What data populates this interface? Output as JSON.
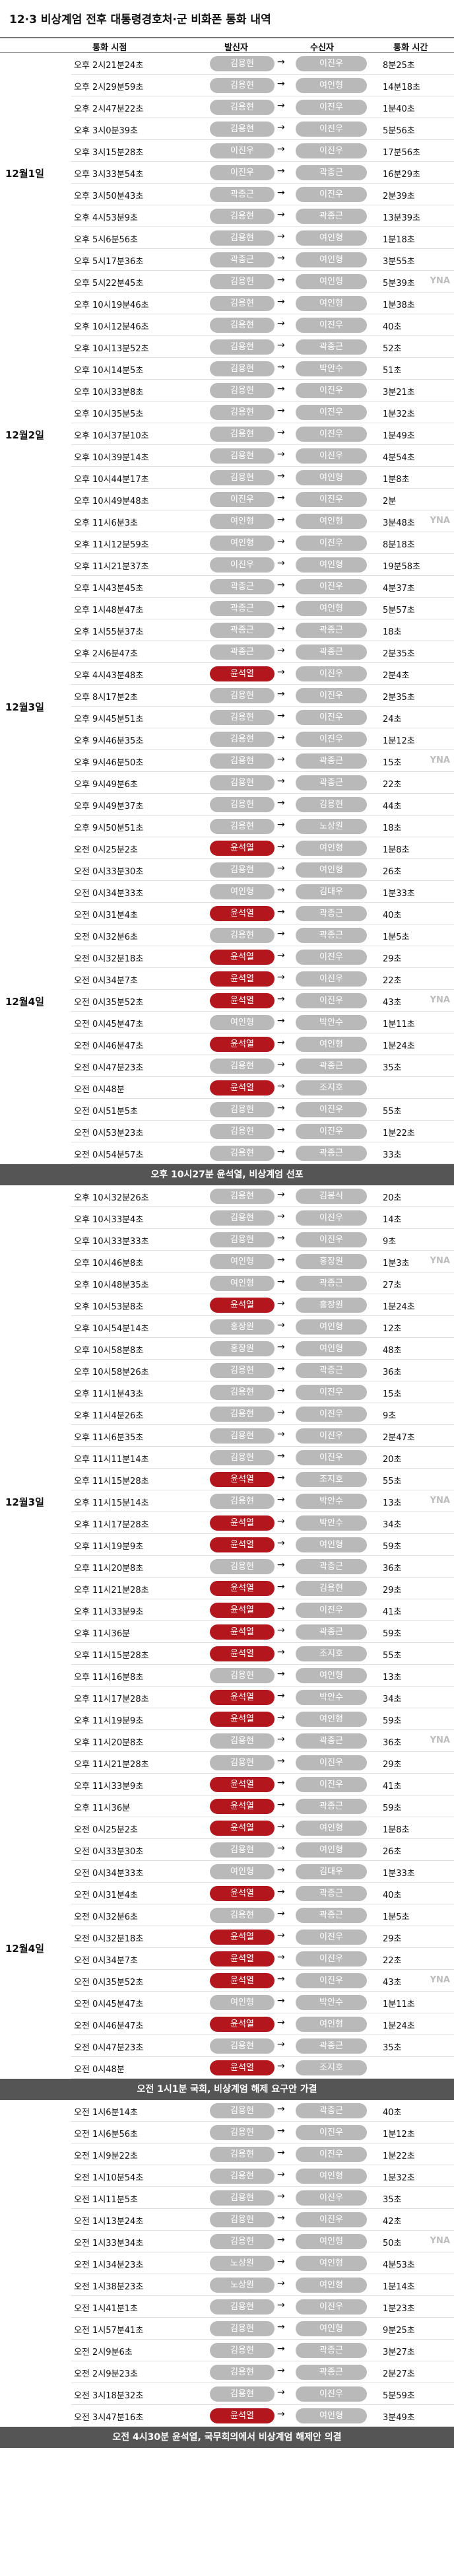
{
  "title": "12·3 비상계엄 전후 대통령경호처·군 비화폰 통화 내역",
  "headers": {
    "time": "통화 시점",
    "caller": "발신자",
    "receiver": "수신자",
    "duration": "통화 시간"
  },
  "colors": {
    "highlight": "#b3171d",
    "default": "#b9b9b9",
    "banner": "#555555"
  },
  "watermark": "YNA",
  "arrow": "→",
  "blocks": [
    {
      "type": "section",
      "date": "12월1일",
      "rows": [
        [
          "오후 2시21분24초",
          "김용현",
          "이진우",
          "8분25초"
        ],
        [
          "오후 2시29분59초",
          "김용현",
          "여인형",
          "14분18초"
        ],
        [
          "오후 2시47분22초",
          "김용현",
          "이진우",
          "1분40초"
        ],
        [
          "오후 3시0분39초",
          "김용현",
          "이진우",
          "5분56초"
        ],
        [
          "오후 3시15분28초",
          "이진우",
          "이진우",
          "17분56초"
        ],
        [
          "오후 3시33분54초",
          "이진우",
          "곽종근",
          "16분29초"
        ],
        [
          "오후 3시50분43초",
          "곽종근",
          "이진우",
          "2분39초"
        ],
        [
          "오후 4시53분9초",
          "김용현",
          "곽종근",
          "13분39초"
        ],
        [
          "오후 5시6분56초",
          "김용현",
          "여인형",
          "1분18초"
        ],
        [
          "오후 5시17분36초",
          "곽종근",
          "여인형",
          "3분55초"
        ],
        [
          "오후 5시22분45초",
          "김용현",
          "여인형",
          "5분39초"
        ]
      ]
    },
    {
      "type": "section",
      "date": "12월2일",
      "rows": [
        [
          "오후 10시19분46초",
          "김용현",
          "여인형",
          "1분38초"
        ],
        [
          "오후 10시12분46초",
          "김용현",
          "이진우",
          "40초"
        ],
        [
          "오후 10시13분52초",
          "김용현",
          "곽종근",
          "52초"
        ],
        [
          "오후 10시14분5초",
          "김용현",
          "박안수",
          "51초"
        ],
        [
          "오후 10시33분8초",
          "김용현",
          "이진우",
          "3분21초"
        ],
        [
          "오후 10시35분5초",
          "김용현",
          "이진우",
          "1분32초"
        ],
        [
          "오후 10시37분10초",
          "김용현",
          "이진우",
          "1분49초"
        ],
        [
          "오후 10시39분14초",
          "김용현",
          "이진우",
          "4분54초"
        ],
        [
          "오후 10시44분17초",
          "김용현",
          "여인형",
          "1분8초"
        ],
        [
          "오후 10시49분48초",
          "이진우",
          "이진우",
          "2분"
        ],
        [
          "오후 11시6분3초",
          "여인형",
          "여인형",
          "3분48초"
        ],
        [
          "오후 11시12분59초",
          "여인형",
          "이진우",
          "8분18초"
        ],
        [
          "오후 11시21분37초",
          "이진우",
          "여인형",
          "19분58초"
        ]
      ]
    },
    {
      "type": "section",
      "date": "12월3일",
      "rows": [
        [
          "오후 1시43분45초",
          "곽종근",
          "이진우",
          "4분37초"
        ],
        [
          "오후 1시48분47초",
          "곽종근",
          "여인형",
          "5분57초"
        ],
        [
          "오후 1시55분37초",
          "곽종근",
          "곽종근",
          "18초"
        ],
        [
          "오후 2시6분47초",
          "곽종근",
          "곽종근",
          "2분35초"
        ],
        [
          "오후 4시43분48초",
          "윤석열",
          "이진우",
          "2분4초"
        ],
        [
          "오후 8시17분2초",
          "김용현",
          "이진우",
          "2분35초"
        ],
        [
          "오후 9시45분51초",
          "김용현",
          "이진우",
          "24초"
        ],
        [
          "오후 9시46분35초",
          "김용현",
          "이진우",
          "1분12초"
        ],
        [
          "오후 9시46분50초",
          "김용현",
          "곽종근",
          "15초"
        ],
        [
          "오후 9시49분6초",
          "김용현",
          "곽종근",
          "22초"
        ],
        [
          "오후 9시49분37초",
          "김용현",
          "김용현",
          "44초"
        ],
        [
          "오후 9시50분51초",
          "김용현",
          "노상원",
          "18초"
        ]
      ]
    },
    {
      "type": "section",
      "date": "12월4일",
      "rows": [
        [
          "오전 0시25분2초",
          "윤석열",
          "여인형",
          "1분8초"
        ],
        [
          "오전 0시33분30초",
          "김용현",
          "여인형",
          "26초"
        ],
        [
          "오전 0시34분33초",
          "여인형",
          "김대우",
          "1분33초"
        ],
        [
          "오전 0시31분4초",
          "윤석열",
          "곽종근",
          "40초"
        ],
        [
          "오전 0시32분6초",
          "김용현",
          "곽종근",
          "1분5초"
        ],
        [
          "오전 0시32분18초",
          "윤석열",
          "이진우",
          "29초"
        ],
        [
          "오전 0시34분7초",
          "윤석열",
          "이진우",
          "22초"
        ],
        [
          "오전 0시35분52초",
          "윤석열",
          "이진우",
          "43초"
        ],
        [
          "오전 0시45분47초",
          "여인형",
          "박안수",
          "1분11초"
        ],
        [
          "오전 0시46분47초",
          "윤석열",
          "여인형",
          "1분24초"
        ],
        [
          "오전 0시47분23초",
          "김용현",
          "곽종근",
          "35초"
        ],
        [
          "오전 0시48분",
          "윤석열",
          "조지호",
          ""
        ],
        [
          "오전 0시51분5초",
          "김용현",
          "이진우",
          "55초"
        ],
        [
          "오전 0시53분23초",
          "김용현",
          "이진우",
          "1분22초"
        ],
        [
          "오전 0시54분57초",
          "김용현",
          "곽종근",
          "33초"
        ]
      ]
    },
    {
      "type": "banner",
      "text": "오후 10시27분 윤석열, 비상계엄 선포"
    },
    {
      "type": "section",
      "date": "12월3일",
      "rows": [
        [
          "오후 10시32분26초",
          "김용현",
          "김봉식",
          "20초"
        ],
        [
          "오후 10시33분4초",
          "김용현",
          "이진우",
          "14초"
        ],
        [
          "오후 10시33분33초",
          "김용현",
          "이진우",
          "9초"
        ],
        [
          "오후 10시46분8초",
          "여인형",
          "홍장원",
          "1분3초"
        ],
        [
          "오후 10시48분35초",
          "여인형",
          "곽종근",
          "27초"
        ],
        [
          "오후 10시53분8초",
          "윤석열",
          "홍장원",
          "1분24초"
        ],
        [
          "오후 10시54분14초",
          "홍장원",
          "여인형",
          "12초"
        ],
        [
          "오후 10시58분8초",
          "홍장원",
          "여인형",
          "48초"
        ],
        [
          "오후 10시58분26초",
          "김용현",
          "곽종근",
          "36초"
        ],
        [
          "오후 11시1분43초",
          "김용현",
          "이진우",
          "15초"
        ],
        [
          "오후 11시4분26초",
          "김용현",
          "이진우",
          "9초"
        ],
        [
          "오후 11시6분35초",
          "김용현",
          "이진우",
          "2분47초"
        ],
        [
          "오후 11시11분14초",
          "김용현",
          "이진우",
          "20초"
        ],
        [
          "오후 11시15분28초",
          "윤석열",
          "조지호",
          "55초"
        ],
        [
          "오후 11시15분14초",
          "김용현",
          "박안수",
          "13초"
        ],
        [
          "오후 11시17분28초",
          "윤석열",
          "박안수",
          "34초"
        ],
        [
          "오후 11시19분9초",
          "윤석열",
          "여인형",
          "59초"
        ],
        [
          "오후 11시20분8초",
          "김용현",
          "곽종근",
          "36초"
        ],
        [
          "오후 11시21분28초",
          "윤석열",
          "김용현",
          "29초"
        ],
        [
          "오후 11시33분9초",
          "윤석열",
          "이진우",
          "41초"
        ],
        [
          "오후 11시36분",
          "윤석열",
          "곽종근",
          "59초"
        ],
        [
          "오후 11시15분28초",
          "윤석열",
          "조지호",
          "55초"
        ],
        [
          "오후 11시16분8초",
          "김용현",
          "여인형",
          "13초"
        ],
        [
          "오후 11시17분28초",
          "윤석열",
          "박안수",
          "34초"
        ],
        [
          "오후 11시19분9초",
          "윤석열",
          "여인형",
          "59초"
        ],
        [
          "오후 11시20분8초",
          "김용현",
          "곽종근",
          "36초"
        ],
        [
          "오후 11시21분28초",
          "김용현",
          "이진우",
          "29초"
        ],
        [
          "오후 11시33분9초",
          "윤석열",
          "이진우",
          "41초"
        ],
        [
          "오후 11시36분",
          "윤석열",
          "곽종근",
          "59초"
        ]
      ]
    },
    {
      "type": "section",
      "date": "12월4일",
      "rows": [
        [
          "오전 0시25분2초",
          "윤석열",
          "여인형",
          "1분8초"
        ],
        [
          "오전 0시33분30초",
          "김용현",
          "여인형",
          "26초"
        ],
        [
          "오전 0시34분33초",
          "여인형",
          "김대우",
          "1분33초"
        ],
        [
          "오전 0시31분4초",
          "윤석열",
          "곽종근",
          "40초"
        ],
        [
          "오전 0시32분6초",
          "김용현",
          "곽종근",
          "1분5초"
        ],
        [
          "오전 0시32분18초",
          "윤석열",
          "이진우",
          "29초"
        ],
        [
          "오전 0시34분7초",
          "윤석열",
          "이진우",
          "22초"
        ],
        [
          "오전 0시35분52초",
          "윤석열",
          "이진우",
          "43초"
        ],
        [
          "오전 0시45분47초",
          "여인형",
          "박안수",
          "1분11초"
        ],
        [
          "오전 0시46분47초",
          "윤석열",
          "여인형",
          "1분24초"
        ],
        [
          "오전 0시47분23초",
          "김용현",
          "곽종근",
          "35초"
        ],
        [
          "오전 0시48분",
          "윤석열",
          "조지호",
          ""
        ]
      ]
    },
    {
      "type": "banner",
      "text": "오전 1시1분 국회, 비상계엄 해제 요구안 가결"
    },
    {
      "type": "section",
      "date": "",
      "rows": [
        [
          "오전 1시6분14초",
          "김용현",
          "곽종근",
          "40초"
        ],
        [
          "오전 1시6분56초",
          "김용현",
          "이진우",
          "1분12초"
        ],
        [
          "오전 1시9분22초",
          "김용현",
          "이진우",
          "1분22초"
        ],
        [
          "오전 1시10분54초",
          "김용현",
          "여인형",
          "1분32초"
        ],
        [
          "오전 1시11분5초",
          "김용현",
          "이진우",
          "35초"
        ],
        [
          "오전 1시13분24초",
          "김용현",
          "이진우",
          "42초"
        ],
        [
          "오전 1시33분34초",
          "김용현",
          "여인형",
          "50초"
        ],
        [
          "오전 1시34분23초",
          "노상원",
          "여인형",
          "4분53초"
        ],
        [
          "오전 1시38분23초",
          "노상원",
          "여인형",
          "1분14초"
        ],
        [
          "오전 1시41분1초",
          "김용현",
          "이진우",
          "1분23초"
        ],
        [
          "오전 1시57분41초",
          "김용현",
          "여인형",
          "9분25초"
        ],
        [
          "오전 2시9분6초",
          "김용현",
          "곽종근",
          "3분27초"
        ],
        [
          "오전 2시9분23초",
          "김용현",
          "곽종근",
          "2분27초"
        ],
        [
          "오전 3시18분32초",
          "김용현",
          "이진우",
          "5분59초"
        ],
        [
          "오전 3시47분16초",
          "윤석열",
          "여인형",
          "3분49초"
        ]
      ]
    },
    {
      "type": "banner",
      "text": "오전 4시30분 윤석열, 국무회의에서 비상계엄 해제안 의결"
    }
  ]
}
